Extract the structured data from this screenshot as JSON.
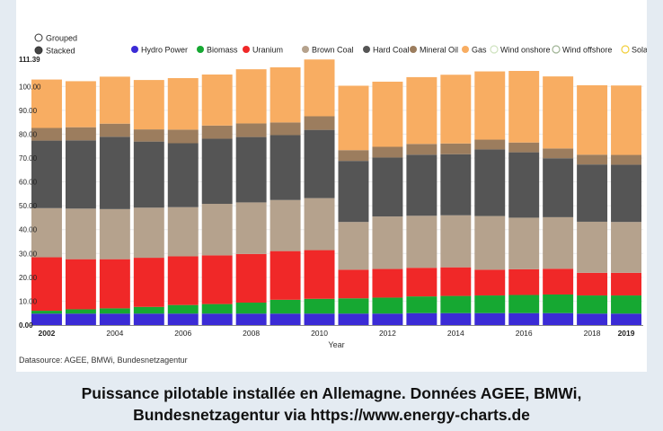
{
  "chart_data": {
    "type": "bar",
    "stacked": true,
    "mode_options": [
      {
        "label": "Grouped",
        "selected": false
      },
      {
        "label": "Stacked",
        "selected": true
      }
    ],
    "xlabel": "Year",
    "ylabel": "",
    "ylim": [
      0,
      111.39
    ],
    "ymax_label": "111.39",
    "yticks": [
      "0.00",
      "10.00",
      "20.00",
      "30.00",
      "40.00",
      "50.00",
      "60.00",
      "70.00",
      "80.00",
      "90.00",
      "100.00"
    ],
    "categories": [
      "2002",
      "2003",
      "2004",
      "2005",
      "2006",
      "2007",
      "2008",
      "2009",
      "2010",
      "2011",
      "2012",
      "2013",
      "2014",
      "2015",
      "2016",
      "2017",
      "2018",
      "2019"
    ],
    "xtick_labels": [
      "2002",
      "",
      "2004",
      "",
      "2006",
      "",
      "2008",
      "",
      "2010",
      "",
      "2012",
      "",
      "2014",
      "",
      "2016",
      "",
      "2018",
      "2019"
    ],
    "series": [
      {
        "name": "Hydro Power",
        "color": "#3b2bd6",
        "marker": "filled",
        "values": [
          4.8,
          4.8,
          4.8,
          4.8,
          4.8,
          4.8,
          4.8,
          4.8,
          4.8,
          4.8,
          4.8,
          5.0,
          5.0,
          5.0,
          5.0,
          5.0,
          4.8,
          4.8
        ]
      },
      {
        "name": "Biomass",
        "color": "#16a832",
        "marker": "filled",
        "values": [
          1.2,
          1.8,
          2.2,
          2.8,
          3.6,
          4.0,
          4.6,
          5.8,
          6.2,
          6.4,
          6.7,
          7.0,
          7.2,
          7.4,
          7.6,
          7.8,
          7.6,
          7.6
        ]
      },
      {
        "name": "Uranium",
        "color": "#f02828",
        "marker": "filled",
        "values": [
          22.4,
          21.0,
          20.6,
          20.6,
          20.4,
          20.4,
          20.4,
          20.4,
          20.4,
          12.0,
          12.0,
          12.0,
          12.0,
          10.8,
          10.8,
          10.8,
          9.5,
          9.5
        ]
      },
      {
        "name": "Brown Coal",
        "color": "#b5a28d",
        "marker": "filled",
        "values": [
          20.6,
          21.2,
          21.0,
          21.0,
          20.6,
          21.6,
          21.6,
          21.4,
          21.8,
          20.0,
          22.0,
          21.8,
          21.8,
          22.5,
          21.6,
          21.6,
          21.4,
          21.3
        ]
      },
      {
        "name": "Hard Coal",
        "color": "#555555",
        "marker": "filled",
        "values": [
          28.3,
          28.6,
          30.3,
          27.7,
          26.8,
          27.3,
          27.4,
          27.2,
          28.6,
          25.6,
          24.7,
          25.6,
          25.6,
          27.9,
          27.4,
          24.7,
          24.0,
          24.0
        ]
      },
      {
        "name": "Mineral Oil",
        "color": "#9c7d5e",
        "marker": "filled",
        "values": [
          5.3,
          5.5,
          5.5,
          5.1,
          5.7,
          5.5,
          5.7,
          5.3,
          5.7,
          4.5,
          4.5,
          4.5,
          4.5,
          4.1,
          4.1,
          4.1,
          4.1,
          4.1
        ]
      },
      {
        "name": "Gas",
        "color": "#f8ad62",
        "marker": "filled",
        "values": [
          20.3,
          19.3,
          19.7,
          20.7,
          21.6,
          21.4,
          22.7,
          23.1,
          23.8,
          27.0,
          27.3,
          28.0,
          28.8,
          28.6,
          30.0,
          30.2,
          29.1,
          29.1
        ]
      },
      {
        "name": "Wind onshore",
        "color": "#cfe3bf",
        "marker": "hollow",
        "values": [
          0,
          0,
          0,
          0,
          0,
          0,
          0,
          0,
          0,
          0,
          0,
          0,
          0,
          0,
          0,
          0,
          0,
          0
        ]
      },
      {
        "name": "Wind offshore",
        "color": "#9fb394",
        "marker": "hollow",
        "values": [
          0,
          0,
          0,
          0,
          0,
          0,
          0,
          0,
          0,
          0,
          0,
          0,
          0,
          0,
          0,
          0,
          0,
          0
        ]
      },
      {
        "name": "Solar",
        "color": "#f2cf3a",
        "marker": "hollow",
        "values": [
          0,
          0,
          0,
          0,
          0,
          0,
          0,
          0,
          0,
          0,
          0,
          0,
          0,
          0,
          0,
          0,
          0,
          0
        ]
      }
    ],
    "datasource": "Datasource: AGEE, BMWi, Bundesnetzagentur"
  },
  "caption": {
    "line1": "Puissance pilotable installée en Allemagne. Données AGEE, BMWi,",
    "line2": "Bundesnetzagentur via https://www.energy-charts.de"
  }
}
